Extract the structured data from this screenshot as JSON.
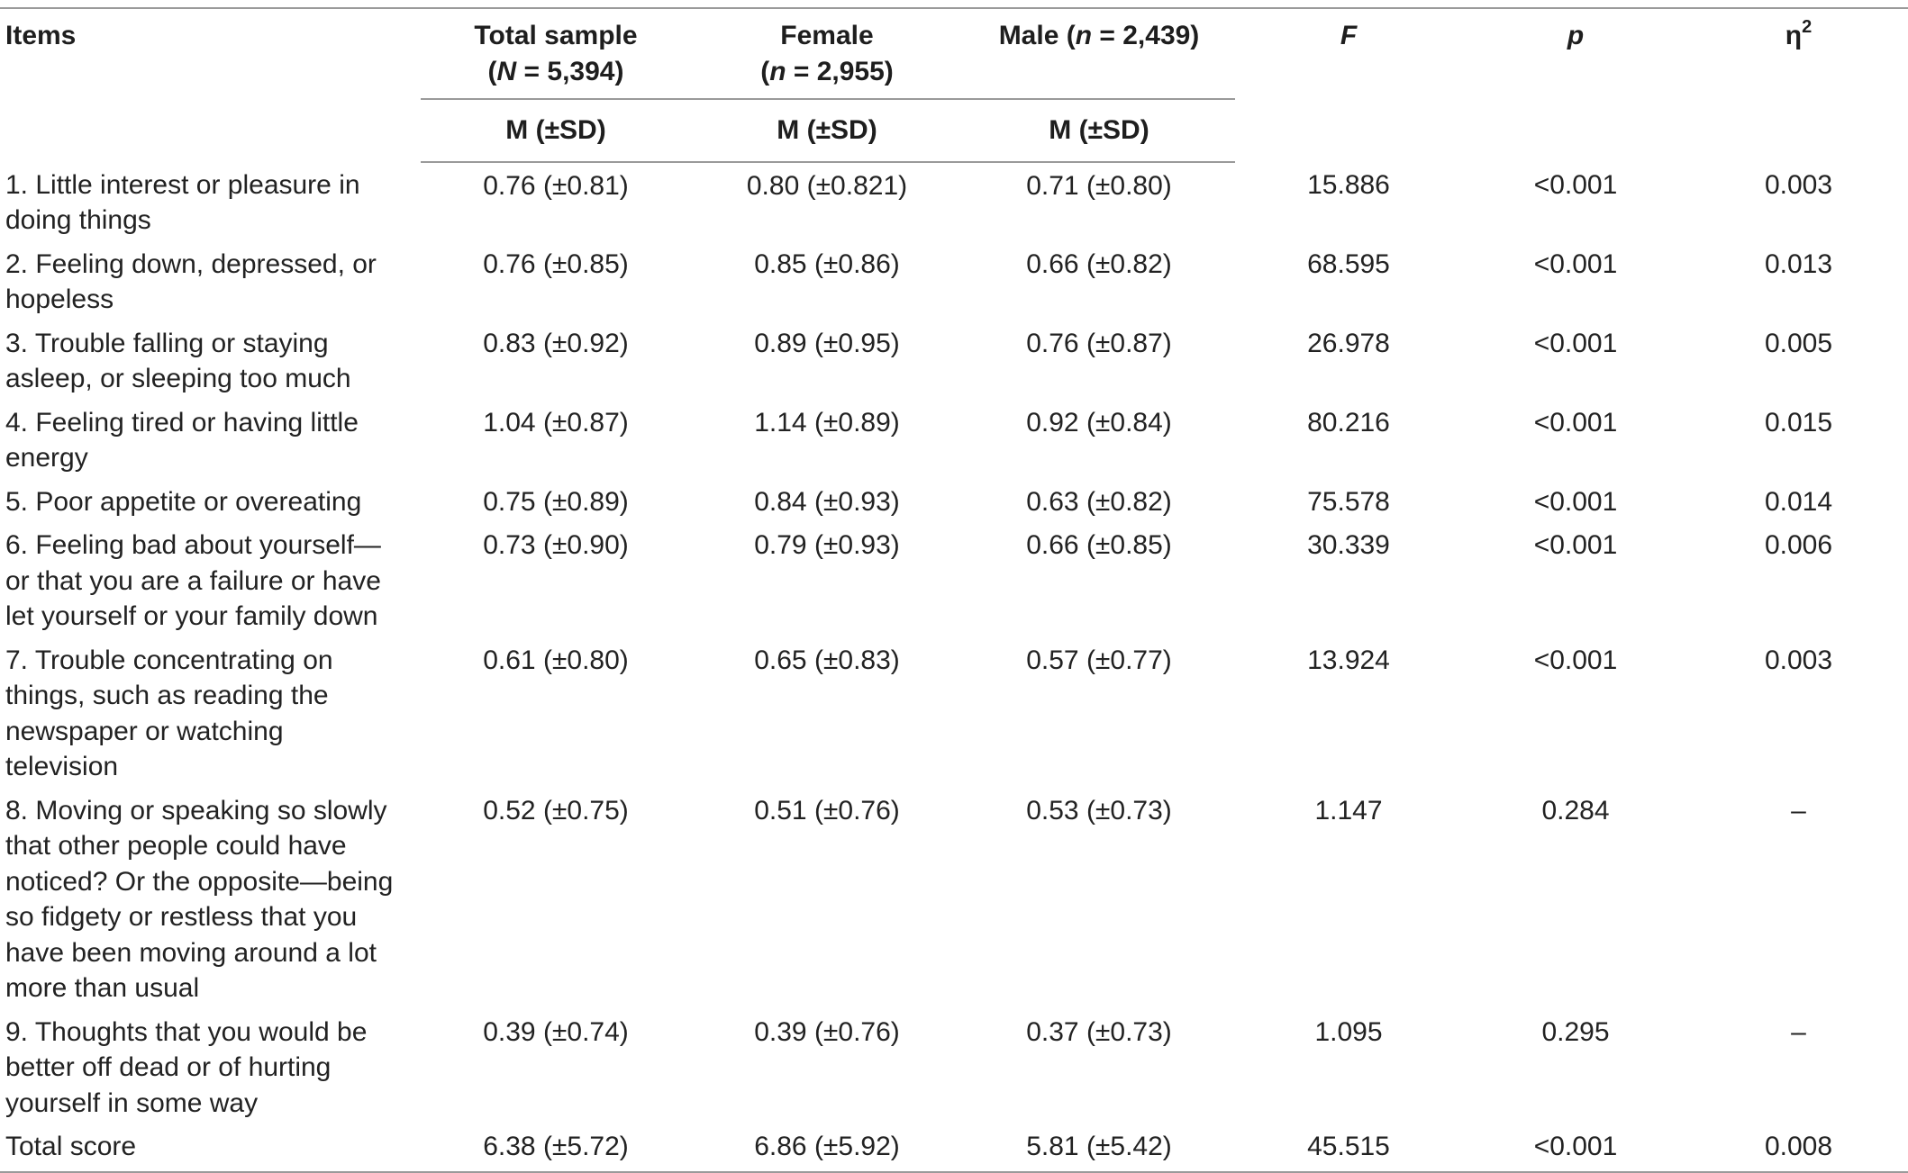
{
  "header": {
    "items": "Items",
    "total_sample": "Total sample",
    "total_sample_n_sym": "N",
    "total_sample_n_val": " = 5,394)",
    "female": "Female",
    "female_n_sym": "n",
    "female_n_val": " = 2,955)",
    "male": "Male (",
    "male_n_sym": "n",
    "male_n_val": " = 2,439)",
    "f": "F",
    "p": "p",
    "eta": "η",
    "eta_sup": "2",
    "sub_label": "M (±SD)"
  },
  "rows": [
    {
      "item": "1. Little interest or pleasure in doing things",
      "total": "0.76 (±0.81)",
      "female": "0.80 (±0.821)",
      "male": "0.71 (±0.80)",
      "f": "15.886",
      "p": "<0.001",
      "eta2": "0.003"
    },
    {
      "item": "2. Feeling down, depressed, or hopeless",
      "total": "0.76 (±0.85)",
      "female": "0.85 (±0.86)",
      "male": "0.66 (±0.82)",
      "f": "68.595",
      "p": "<0.001",
      "eta2": "0.013"
    },
    {
      "item": "3. Trouble falling or staying asleep, or sleeping too much",
      "total": "0.83 (±0.92)",
      "female": "0.89 (±0.95)",
      "male": "0.76 (±0.87)",
      "f": "26.978",
      "p": "<0.001",
      "eta2": "0.005"
    },
    {
      "item": "4. Feeling tired or having little energy",
      "total": "1.04 (±0.87)",
      "female": "1.14 (±0.89)",
      "male": "0.92 (±0.84)",
      "f": "80.216",
      "p": "<0.001",
      "eta2": "0.015"
    },
    {
      "item": "5. Poor appetite or overeating",
      "total": "0.75 (±0.89)",
      "female": "0.84 (±0.93)",
      "male": "0.63 (±0.82)",
      "f": "75.578",
      "p": "<0.001",
      "eta2": "0.014"
    },
    {
      "item": "6. Feeling bad about yourself—or that you are a failure or have let yourself or your family down",
      "total": "0.73 (±0.90)",
      "female": "0.79 (±0.93)",
      "male": "0.66 (±0.85)",
      "f": "30.339",
      "p": "<0.001",
      "eta2": "0.006"
    },
    {
      "item": "7. Trouble concentrating on things, such as reading the newspaper or watching television",
      "total": "0.61 (±0.80)",
      "female": "0.65 (±0.83)",
      "male": "0.57 (±0.77)",
      "f": "13.924",
      "p": "<0.001",
      "eta2": "0.003"
    },
    {
      "item": "8. Moving or speaking so slowly that other people could have noticed? Or the opposite—being so fidgety or restless that you have been moving around a lot more than usual",
      "total": "0.52 (±0.75)",
      "female": "0.51 (±0.76)",
      "male": "0.53 (±0.73)",
      "f": "1.147",
      "p": "0.284",
      "eta2": "–"
    },
    {
      "item": "9. Thoughts that you would be better off dead or of hurting yourself in some way",
      "total": "0.39 (±0.74)",
      "female": "0.39 (±0.76)",
      "male": "0.37 (±0.73)",
      "f": "1.095",
      "p": "0.295",
      "eta2": "–"
    },
    {
      "item": "Total score",
      "total": "6.38 (±5.72)",
      "female": "6.86 (±5.92)",
      "male": "5.81 (±5.42)",
      "f": "45.515",
      "p": "<0.001",
      "eta2": "0.008"
    }
  ]
}
